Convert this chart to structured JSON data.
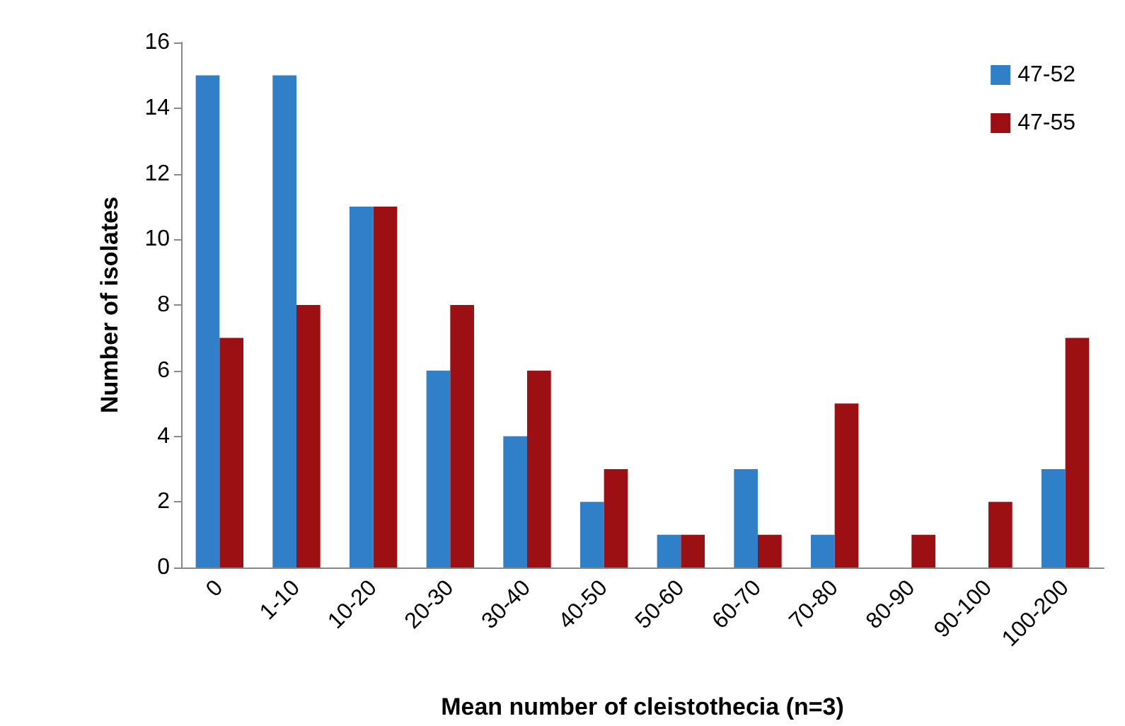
{
  "chart_data": {
    "type": "bar",
    "xlabel": "Mean number of cleistothecia (n=3)",
    "ylabel": "Number of isolates",
    "categories": [
      "0",
      "1-10",
      "10-20",
      "20-30",
      "30-40",
      "40-50",
      "50-60",
      "60-70",
      "70-80",
      "80-90",
      "90-100",
      "100-200"
    ],
    "series": [
      {
        "name": "47-52",
        "color": "#2f80c8",
        "values": [
          15,
          15,
          11,
          6,
          4,
          2,
          1,
          3,
          1,
          0,
          0,
          3
        ]
      },
      {
        "name": "47-55",
        "color": "#9c0f12",
        "values": [
          7,
          8,
          11,
          8,
          6,
          3,
          1,
          1,
          5,
          1,
          2,
          7
        ]
      }
    ],
    "ylim": [
      0,
      16
    ],
    "yticks": [
      0,
      2,
      4,
      6,
      8,
      10,
      12,
      14,
      16
    ],
    "grid": false,
    "legend": "top right"
  }
}
